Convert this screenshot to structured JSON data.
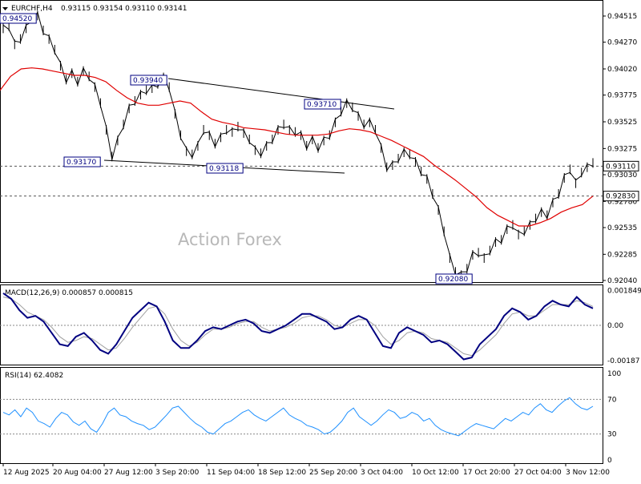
{
  "header": {
    "symbol": "EURCHF,H4",
    "ohlc": "0.93115 0.93154 0.93110 0.93141"
  },
  "watermark": "Action Forex",
  "colors": {
    "price": "#000000",
    "ma": "#e00000",
    "macd": "#000080",
    "signal": "#a0a0a0",
    "rsi": "#1e90ff",
    "label_border": "#000080",
    "label_text": "#000080"
  },
  "chart_data": [
    {
      "type": "line",
      "pane": "price",
      "series": [
        {
          "values": [
            0.944,
            0.9442,
            0.9425,
            0.943,
            0.944,
            0.9449,
            0.9452,
            0.9438,
            0.943,
            0.942,
            0.9405,
            0.9392,
            0.9398,
            0.939,
            0.94,
            0.9395,
            0.9385,
            0.937,
            0.9345,
            0.932,
            0.9335,
            0.935,
            0.9365,
            0.9372,
            0.9378,
            0.9382,
            0.9384,
            0.9388,
            0.9394,
            0.9385,
            0.936,
            0.934,
            0.9325,
            0.9322,
            0.933,
            0.9345,
            0.934,
            0.9332,
            0.9338,
            0.9345,
            0.9343,
            0.9348,
            0.9342,
            0.9336,
            0.9326,
            0.9323,
            0.933,
            0.9336,
            0.9345,
            0.935,
            0.9345,
            0.9343,
            0.934,
            0.933,
            0.9336,
            0.9328,
            0.9335,
            0.934,
            0.9352,
            0.9362,
            0.937,
            0.9366,
            0.9358,
            0.935,
            0.9352,
            0.9345,
            0.9328,
            0.931,
            0.9312,
            0.9318,
            0.9324,
            0.9322,
            0.9315,
            0.9306,
            0.9299,
            0.9285,
            0.927,
            0.925,
            0.9225,
            0.9212,
            0.9209,
            0.9215,
            0.9228,
            0.923,
            0.9225,
            0.9232,
            0.924,
            0.9242,
            0.9252,
            0.9256,
            0.9247,
            0.925,
            0.9256,
            0.9262,
            0.9268,
            0.9265,
            0.9277,
            0.9285,
            0.93,
            0.9308,
            0.9295,
            0.9305,
            0.931,
            0.9314
          ]
        },
        {
          "values": [
            0.9382,
            0.9395,
            0.9402,
            0.9403,
            0.9402,
            0.94,
            0.9398,
            0.9396,
            0.9396,
            0.9394,
            0.939,
            0.9382,
            0.9375,
            0.937,
            0.9368,
            0.9368,
            0.937,
            0.9372,
            0.937,
            0.9362,
            0.9355,
            0.9352,
            0.935,
            0.9347,
            0.9346,
            0.9345,
            0.9343,
            0.9341,
            0.934,
            0.934,
            0.934,
            0.9341,
            0.9344,
            0.9346,
            0.9345,
            0.9343,
            0.9339,
            0.9335,
            0.933,
            0.9325,
            0.932,
            0.9312,
            0.9305,
            0.9298,
            0.929,
            0.9282,
            0.9272,
            0.9265,
            0.926,
            0.9255,
            0.9255,
            0.9258,
            0.9262,
            0.9268,
            0.9272,
            0.9275,
            0.9283
          ]
        }
      ],
      "ylim": [
        0.9204,
        0.946
      ],
      "ticks": [
        "0.94515",
        "0.94270",
        "0.94020",
        "0.93775",
        "0.93525",
        "0.93275",
        "0.93030",
        "0.92780",
        "0.92535",
        "0.92285",
        "0.92040"
      ],
      "current_price_label": "0.93110",
      "support_label": "0.92830",
      "annotations": [
        "0.94520",
        "0.93940",
        "0.93710",
        "0.93170",
        "0.93118",
        "0.92080"
      ]
    },
    {
      "type": "line",
      "pane": "macd",
      "title": "MACD(12,26,9) 0.000857 0.000815",
      "series": [
        {
          "values": [
            0.0017,
            0.0014,
            0.0008,
            0.0004,
            0.0005,
            0.0002,
            -0.0004,
            -0.001,
            -0.0011,
            -0.0006,
            -0.0004,
            -0.0008,
            -0.0013,
            -0.0015,
            -0.001,
            -0.0003,
            0.0004,
            0.0008,
            0.0012,
            0.001,
            0.0002,
            -0.0008,
            -0.0012,
            -0.0012,
            -0.0008,
            -0.0003,
            -0.0001,
            -0.0002,
            0.0,
            0.0002,
            0.0003,
            0.0001,
            -0.0003,
            -0.0004,
            -0.0002,
            0.0,
            0.0003,
            0.0006,
            0.0006,
            0.0004,
            0.0002,
            -0.0002,
            -0.0001,
            0.0003,
            0.0005,
            0.0003,
            -0.0004,
            -0.0011,
            -0.0012,
            -0.0004,
            -0.0001,
            -0.0003,
            -0.0005,
            -0.0009,
            -0.0008,
            -0.001,
            -0.0014,
            -0.0018,
            -0.0017,
            -0.001,
            -0.0006,
            -0.0002,
            0.0005,
            0.0009,
            0.0007,
            0.0003,
            0.0005,
            0.001,
            0.0013,
            0.0011,
            0.001,
            0.0015,
            0.0011,
            0.0009
          ]
        },
        {
          "values": [
            0.0015,
            0.0014,
            0.0011,
            0.0007,
            0.0005,
            0.0003,
            -0.0001,
            -0.0006,
            -0.0009,
            -0.0008,
            -0.0006,
            -0.0007,
            -0.001,
            -0.0013,
            -0.0012,
            -0.0007,
            -0.0001,
            0.0004,
            0.0009,
            0.001,
            0.0006,
            -0.0002,
            -0.0008,
            -0.0011,
            -0.0009,
            -0.0005,
            -0.0002,
            -0.0002,
            -0.0001,
            0.0001,
            0.0002,
            0.0002,
            -0.0001,
            -0.0003,
            -0.0002,
            -0.0001,
            0.0001,
            0.0004,
            0.0005,
            0.0005,
            0.0003,
            0.0,
            -0.0001,
            0.0001,
            0.0003,
            0.0003,
            0.0,
            -0.0006,
            -0.001,
            -0.0008,
            -0.0004,
            -0.0003,
            -0.0004,
            -0.0007,
            -0.0008,
            -0.0009,
            -0.0012,
            -0.0015,
            -0.0016,
            -0.0013,
            -0.0009,
            -0.0005,
            0.0001,
            0.0006,
            0.0007,
            0.0005,
            0.0005,
            0.0008,
            0.0011,
            0.0011,
            0.0011,
            0.0013,
            0.0012,
            0.001
          ]
        }
      ],
      "ylim": [
        -0.00195,
        0.00195
      ],
      "ticks": [
        "0.001849",
        "0.00",
        "-0.00187"
      ]
    },
    {
      "type": "line",
      "pane": "rsi",
      "title": "RSI(14) 62.4082",
      "series": [
        {
          "values": [
            55,
            52,
            58,
            50,
            60,
            55,
            45,
            42,
            38,
            48,
            55,
            52,
            44,
            40,
            45,
            36,
            32,
            42,
            55,
            60,
            52,
            50,
            45,
            42,
            40,
            35,
            38,
            45,
            52,
            60,
            62,
            55,
            48,
            42,
            38,
            32,
            30,
            36,
            42,
            45,
            50,
            55,
            58,
            52,
            48,
            45,
            50,
            55,
            60,
            52,
            48,
            45,
            40,
            38,
            35,
            30,
            32,
            38,
            45,
            55,
            60,
            50,
            45,
            40,
            45,
            52,
            58,
            55,
            48,
            50,
            55,
            52,
            45,
            48,
            40,
            35,
            32,
            30,
            28,
            33,
            38,
            42,
            40,
            38,
            36,
            42,
            48,
            45,
            50,
            55,
            52,
            60,
            65,
            58,
            55,
            62,
            68,
            72,
            65,
            60,
            58,
            62
          ]
        }
      ],
      "ylim": [
        0,
        100
      ],
      "ticks": [
        "100",
        "70",
        "30",
        "0"
      ],
      "levels": [
        70,
        30
      ]
    }
  ],
  "x_axis": {
    "labels": [
      "12 Aug 2025",
      "20 Aug 04:00",
      "27 Aug 12:00",
      "3 Sep 20:00",
      "11 Sep 04:00",
      "18 Sep 12:00",
      "25 Sep 20:00",
      "3 Oct 04:00",
      "10 Oct 12:00",
      "17 Oct 20:00",
      "27 Oct 04:00",
      "3 Nov 12:00"
    ]
  }
}
